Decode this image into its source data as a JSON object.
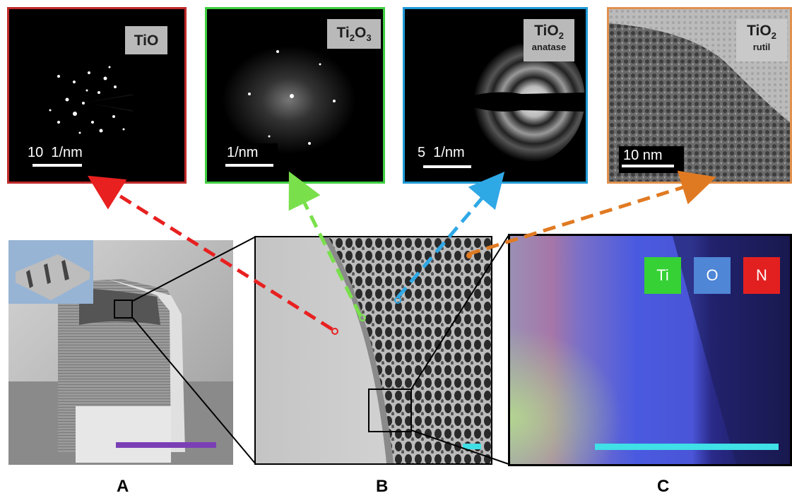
{
  "panels": {
    "tio": {
      "title": "TiO",
      "scale_label": "10  1/nm",
      "frame_color": "#c0292a"
    },
    "ti2o3": {
      "title_prefix": "Ti",
      "title_sub1": "2",
      "title_mid": "O",
      "title_sub2": "3",
      "scale_label": "1/nm",
      "frame_color": "#3fcf3f"
    },
    "anatase": {
      "title_prefix": "TiO",
      "title_sub": "2",
      "phase": "anatase",
      "scale_label": "5  1/nm",
      "frame_color": "#1f9ad6"
    },
    "rutile": {
      "title_prefix": "TiO",
      "title_sub": "2",
      "phase": "rutil",
      "scale_label": "10 nm",
      "frame_color": "#e0914d"
    }
  },
  "legend": {
    "ti": "Ti",
    "o": "O",
    "n": "N",
    "ti_color": "#35d135",
    "o_color": "#4f86d6",
    "n_color": "#e32020"
  },
  "panel_letters": {
    "a": "A",
    "b": "B",
    "c": "C"
  },
  "arrow_colors": {
    "red": "#e82020",
    "green": "#79e04b",
    "blue": "#2fa8e6",
    "orange": "#e07a22"
  },
  "scalebar_colors": {
    "a": "#7a3fb5",
    "b": "#3fe0e6",
    "c": "#3fe0e6"
  }
}
